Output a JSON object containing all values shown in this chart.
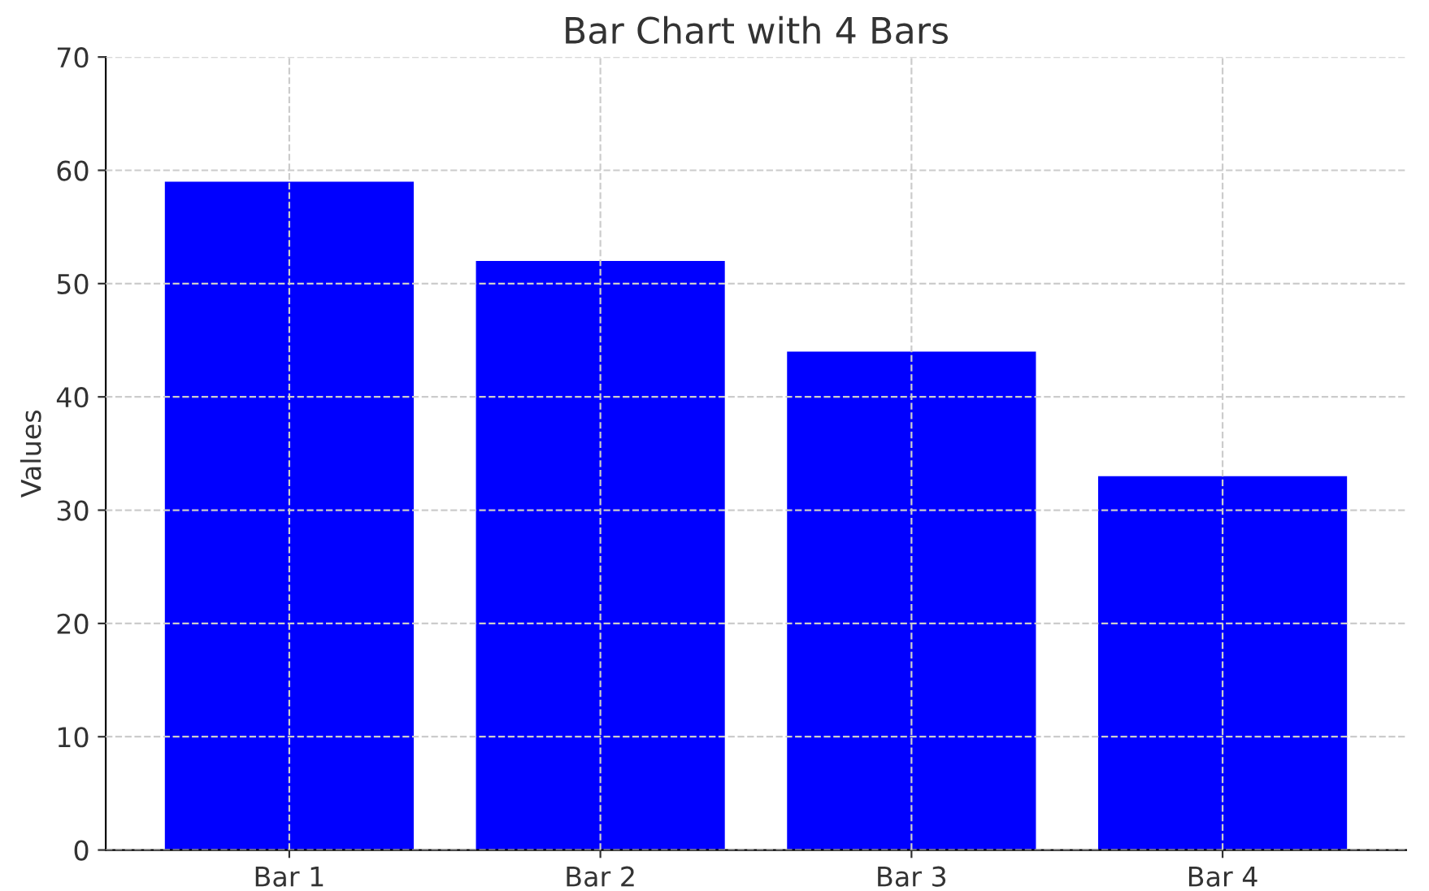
{
  "chart_data": {
    "type": "bar",
    "title": "Bar Chart with 4 Bars",
    "ylabel": "Values",
    "categories": [
      "Bar 1",
      "Bar 2",
      "Bar 3",
      "Bar 4"
    ],
    "values": [
      59,
      52,
      44,
      33
    ],
    "color": "#0000ff",
    "ylim": [
      0,
      70
    ],
    "yticks": [
      0,
      10,
      20,
      30,
      40,
      50,
      60,
      70
    ],
    "grid": true
  }
}
